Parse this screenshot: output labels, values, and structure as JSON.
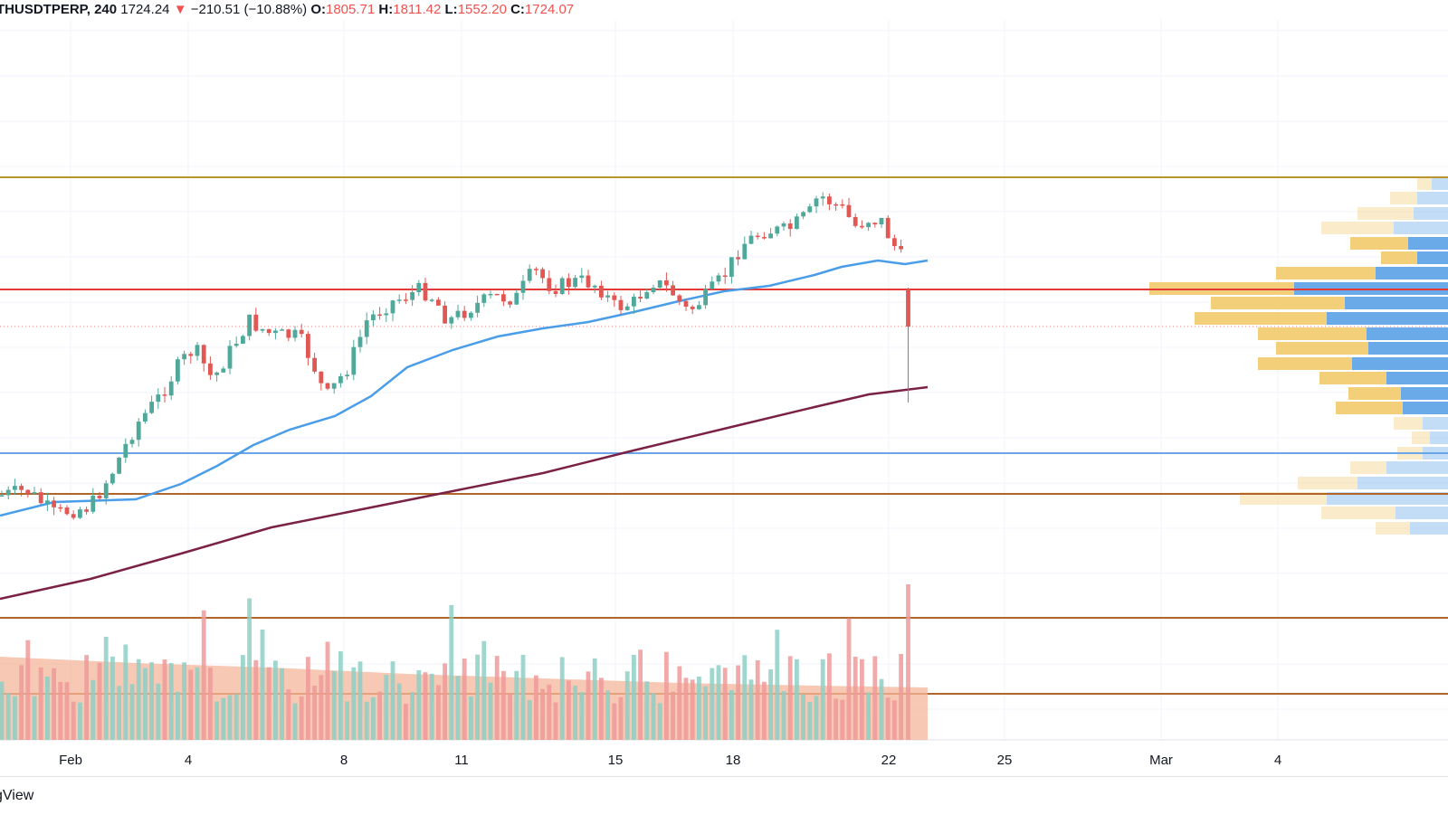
{
  "legend": {
    "symbol": "THUSDTPERP, 240",
    "last": "1724.24",
    "arrow": "▼",
    "change": "−210.51 (−10.88%)",
    "o_label": "O:",
    "o_value": "1805.71",
    "h_label": "H:",
    "h_value": "1811.42",
    "l_label": "L:",
    "l_value": "1552.20",
    "c_label": "C:",
    "c_value": "1724.07"
  },
  "brand": "gView",
  "x_axis_labels": [
    "Feb",
    "4",
    "8",
    "11",
    "15",
    "18",
    "22",
    "25",
    "Mar",
    "4"
  ],
  "colors": {
    "up": "#4fa89a",
    "down": "#e05754",
    "ma_short": "#4a9de8",
    "ma_long": "#7a2145",
    "res_gold": "#b8952e",
    "res_red": "#e53935",
    "support_blue": "#6aa5e8",
    "support_brown": "#b0652a",
    "vp_yellow": "#f3cf7a",
    "vp_blue": "#6aaae8"
  },
  "chart_data": {
    "type": "candlestick",
    "interval": "240",
    "x_ticks": [
      "Feb",
      "4",
      "8",
      "11",
      "15",
      "18",
      "22",
      "25",
      "Mar",
      "4"
    ],
    "horizontal_levels": [
      "gold",
      "red",
      "blue",
      "brown",
      "brown",
      "brown"
    ],
    "moving_averages": [
      "short (blue)",
      "long (maroon)"
    ],
    "volume_profile": true
  }
}
